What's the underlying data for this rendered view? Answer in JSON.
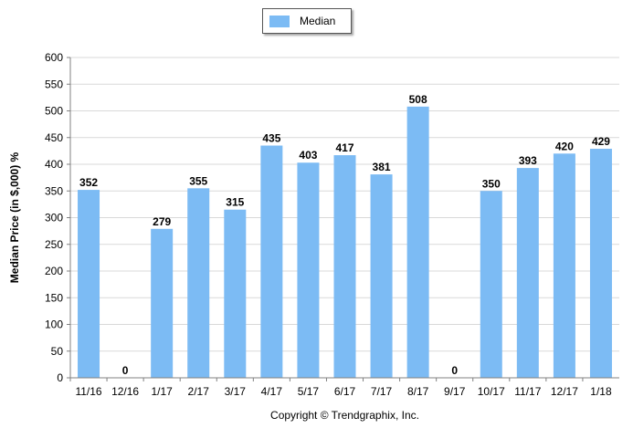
{
  "chart_data": {
    "type": "bar",
    "categories": [
      "11/16",
      "12/16",
      "1/17",
      "2/17",
      "3/17",
      "4/17",
      "5/17",
      "6/17",
      "7/17",
      "8/17",
      "9/17",
      "10/17",
      "11/17",
      "12/17",
      "1/18"
    ],
    "series": [
      {
        "name": "Median",
        "values": [
          352,
          0,
          279,
          355,
          315,
          435,
          403,
          417,
          381,
          508,
          0,
          350,
          393,
          420,
          429
        ],
        "color": "#7cbbf4"
      }
    ],
    "title": "",
    "xlabel": "Copyright © Trendgraphix, Inc.",
    "ylabel": "Median Price (in $,000) %",
    "ylim": [
      0,
      600
    ],
    "yticks": [
      0,
      50,
      100,
      150,
      200,
      250,
      300,
      350,
      400,
      450,
      500,
      550,
      600
    ],
    "grid": true,
    "legend_position": "top-center",
    "data_labels": true,
    "colors": {
      "bar": "#7cbbf4",
      "grid": "#d9d9d9",
      "axis": "#808080"
    }
  }
}
